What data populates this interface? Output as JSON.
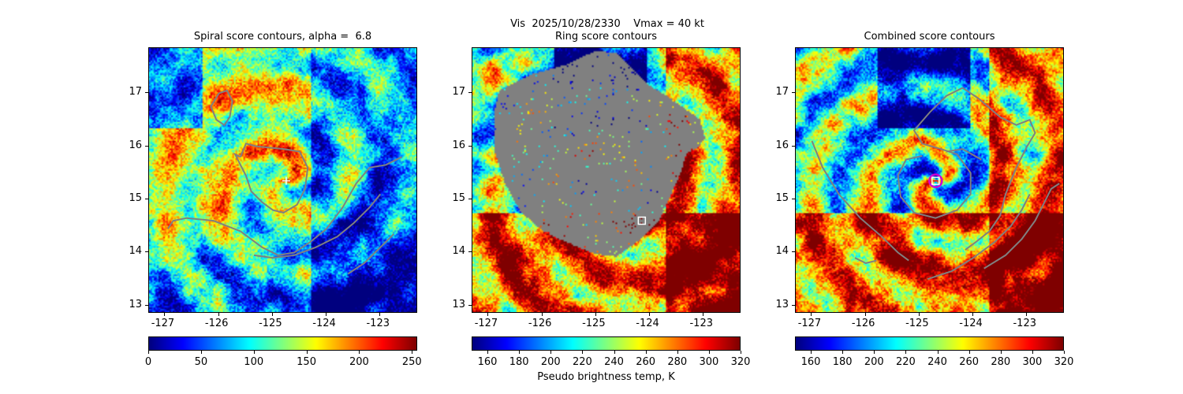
{
  "figure": {
    "suptitle": "Vis  2025/10/28/2330    Vmax = 40 kt"
  },
  "chart_data": [
    {
      "type": "heatmap",
      "title": "Spiral score contours, alpha =  6.8",
      "xlabel": "",
      "ylabel": "",
      "xlim": [
        -127.3,
        -122.3
      ],
      "ylim": [
        12.85,
        17.85
      ],
      "xticks": [
        "-127",
        "-126",
        "-125",
        "-124",
        "-123"
      ],
      "yticks": [
        "13",
        "14",
        "15",
        "16",
        "17"
      ],
      "colormap": "jet_r",
      "colorbar": {
        "range": [
          0,
          255
        ],
        "ticks": [
          "0",
          "50",
          "100",
          "150",
          "200",
          "250"
        ],
        "label": ""
      },
      "center_marker": {
        "lon": -124.75,
        "lat": 15.35,
        "shape": "plus"
      },
      "contour_color": "#808080",
      "contours": [
        [
          [
            -126.0,
            17.0
          ],
          [
            -125.85,
            17.05
          ],
          [
            -125.75,
            16.85
          ],
          [
            -125.8,
            16.55
          ],
          [
            -125.9,
            16.4
          ],
          [
            -126.05,
            16.5
          ],
          [
            -126.15,
            16.75
          ],
          [
            -126.0,
            17.0
          ]
        ],
        [
          [
            -125.6,
            15.8
          ],
          [
            -125.5,
            16.05
          ],
          [
            -125.3,
            16.0
          ],
          [
            -124.8,
            15.95
          ],
          [
            -124.5,
            15.9
          ],
          [
            -124.35,
            15.6
          ],
          [
            -124.4,
            15.2
          ],
          [
            -124.55,
            14.9
          ],
          [
            -124.8,
            14.75
          ],
          [
            -125.0,
            14.8
          ],
          [
            -125.2,
            14.95
          ],
          [
            -125.4,
            15.15
          ],
          [
            -125.5,
            15.45
          ],
          [
            -125.6,
            15.65
          ],
          [
            -125.7,
            15.85
          ],
          [
            -125.6,
            15.8
          ]
        ],
        [
          [
            -126.95,
            14.45
          ],
          [
            -126.85,
            14.6
          ],
          [
            -126.6,
            14.65
          ],
          [
            -126.1,
            14.6
          ],
          [
            -125.6,
            14.4
          ],
          [
            -125.2,
            14.1
          ],
          [
            -124.9,
            13.95
          ],
          [
            -124.6,
            14.0
          ],
          [
            -124.3,
            14.2
          ],
          [
            -124.0,
            14.45
          ],
          [
            -123.7,
            14.85
          ],
          [
            -123.45,
            15.3
          ],
          [
            -123.2,
            15.6
          ],
          [
            -122.9,
            15.65
          ],
          [
            -122.6,
            15.8
          ]
        ],
        [
          [
            -125.35,
            13.95
          ],
          [
            -125.0,
            13.9
          ],
          [
            -124.6,
            13.95
          ],
          [
            -124.2,
            14.1
          ],
          [
            -123.8,
            14.3
          ],
          [
            -123.5,
            14.55
          ],
          [
            -123.2,
            14.85
          ],
          [
            -123.0,
            15.1
          ]
        ],
        [
          [
            -123.6,
            13.6
          ],
          [
            -123.3,
            13.8
          ],
          [
            -123.0,
            14.1
          ],
          [
            -122.75,
            14.35
          ]
        ]
      ]
    },
    {
      "type": "heatmap",
      "title": "Ring score contours",
      "xlabel": "",
      "ylabel": "",
      "xlim": [
        -127.3,
        -122.3
      ],
      "ylim": [
        12.85,
        17.85
      ],
      "xticks": [
        "-127",
        "-126",
        "-125",
        "-124",
        "-123"
      ],
      "yticks": [
        "13",
        "14",
        "15",
        "16",
        "17"
      ],
      "colormap": "jet_r",
      "colorbar": {
        "range": [
          150,
          320
        ],
        "ticks": [
          "160",
          "180",
          "200",
          "220",
          "240",
          "260",
          "280",
          "300",
          "320"
        ],
        "label": "Pseudo brightness temp, K"
      },
      "center_marker": {
        "lon": -124.15,
        "lat": 14.6,
        "shape": "square"
      },
      "mask_color": "#808080",
      "mask_outline": [
        [
          -126.8,
          17.05
        ],
        [
          -126.2,
          17.35
        ],
        [
          -125.5,
          17.55
        ],
        [
          -125.0,
          17.8
        ],
        [
          -124.6,
          17.75
        ],
        [
          -124.3,
          17.45
        ],
        [
          -124.0,
          17.15
        ],
        [
          -123.6,
          16.9
        ],
        [
          -123.05,
          16.5
        ],
        [
          -122.95,
          16.15
        ],
        [
          -123.1,
          15.95
        ],
        [
          -123.3,
          15.85
        ],
        [
          -123.4,
          15.5
        ],
        [
          -123.6,
          15.05
        ],
        [
          -123.8,
          14.6
        ],
        [
          -124.2,
          14.2
        ],
        [
          -124.6,
          13.9
        ],
        [
          -125.0,
          13.95
        ],
        [
          -125.5,
          14.15
        ],
        [
          -126.0,
          14.4
        ],
        [
          -126.4,
          14.75
        ],
        [
          -126.7,
          15.3
        ],
        [
          -126.9,
          15.95
        ],
        [
          -126.9,
          16.6
        ],
        [
          -126.8,
          17.05
        ]
      ]
    },
    {
      "type": "heatmap",
      "title": "Combined score contours",
      "xlabel": "",
      "ylabel": "",
      "xlim": [
        -127.3,
        -122.3
      ],
      "ylim": [
        12.85,
        17.85
      ],
      "xticks": [
        "-127",
        "-126",
        "-125",
        "-124",
        "-123"
      ],
      "yticks": [
        "13",
        "14",
        "15",
        "16",
        "17"
      ],
      "colormap": "jet_r",
      "colorbar": {
        "range": [
          150,
          320
        ],
        "ticks": [
          "160",
          "180",
          "200",
          "220",
          "240",
          "260",
          "280",
          "300",
          "320"
        ],
        "label": ""
      },
      "center_marker": {
        "lon": -124.7,
        "lat": 15.35,
        "shape": "square"
      },
      "contour_color": "#808080",
      "contours": [
        [
          [
            -124.2,
            17.1
          ],
          [
            -124.5,
            16.95
          ],
          [
            -124.8,
            16.65
          ],
          [
            -125.1,
            16.3
          ],
          [
            -124.95,
            16.05
          ],
          [
            -124.6,
            15.95
          ],
          [
            -124.3,
            15.85
          ],
          [
            -124.05,
            15.5
          ],
          [
            -124.05,
            15.1
          ],
          [
            -124.3,
            14.8
          ],
          [
            -124.7,
            14.65
          ],
          [
            -125.1,
            14.75
          ],
          [
            -125.35,
            15.05
          ],
          [
            -125.4,
            15.45
          ],
          [
            -125.25,
            15.75
          ],
          [
            -124.95,
            15.82
          ]
        ],
        [
          [
            -124.2,
            17.1
          ],
          [
            -123.9,
            16.9
          ],
          [
            -123.5,
            16.55
          ],
          [
            -123.2,
            16.4
          ],
          [
            -122.95,
            16.5
          ],
          [
            -122.85,
            16.25
          ],
          [
            -123.0,
            16.0
          ],
          [
            -123.2,
            15.6
          ],
          [
            -123.4,
            15.1
          ],
          [
            -123.5,
            14.7
          ],
          [
            -123.7,
            14.4
          ],
          [
            -123.95,
            14.2
          ],
          [
            -124.15,
            14.05
          ]
        ],
        [
          [
            -127.0,
            16.1
          ],
          [
            -126.8,
            15.6
          ],
          [
            -126.5,
            15.1
          ],
          [
            -126.1,
            14.65
          ],
          [
            -125.7,
            14.3
          ],
          [
            -125.4,
            14.0
          ],
          [
            -125.2,
            13.85
          ]
        ],
        [
          [
            -124.5,
            15.9
          ],
          [
            -124.2,
            15.95
          ],
          [
            -123.85,
            15.75
          ]
        ],
        [
          [
            -123.8,
            13.7
          ],
          [
            -123.4,
            13.95
          ],
          [
            -123.1,
            14.25
          ],
          [
            -122.85,
            14.6
          ],
          [
            -122.7,
            14.9
          ],
          [
            -122.55,
            15.2
          ],
          [
            -122.4,
            15.3
          ]
        ],
        [
          [
            -124.85,
            13.5
          ],
          [
            -124.4,
            13.65
          ],
          [
            -124.0,
            13.9
          ],
          [
            -123.6,
            14.2
          ],
          [
            -123.3,
            14.5
          ],
          [
            -123.1,
            14.8
          ],
          [
            -122.95,
            15.1
          ]
        ],
        [
          [
            -126.2,
            13.9
          ],
          [
            -126.0,
            13.8
          ],
          [
            -125.8,
            13.85
          ]
        ]
      ],
      "inner_ring": {
        "lon": -124.7,
        "lat": 15.35,
        "color": "#d000d0"
      }
    }
  ]
}
